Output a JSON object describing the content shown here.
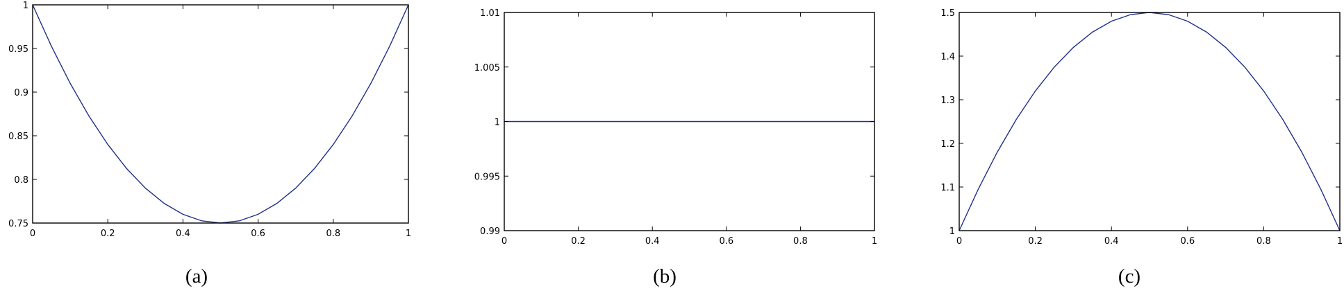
{
  "colors": {
    "series": "#1f2f8a",
    "axes": "#000000",
    "background": "#ffffff"
  },
  "chart_data": [
    {
      "type": "line",
      "caption": "(a)",
      "xlim": [
        0,
        1
      ],
      "ylim": [
        0.75,
        1
      ],
      "xticks": [
        0,
        0.2,
        0.4,
        0.6,
        0.8,
        1
      ],
      "xtick_labels": [
        "0",
        "0.2",
        "0.4",
        "0.6",
        "0.8",
        "1"
      ],
      "yticks": [
        0.75,
        0.8,
        0.85,
        0.9,
        0.95,
        1
      ],
      "ytick_labels": [
        "0.75",
        "0.8",
        "0.85",
        "0.9",
        "0.95",
        "1"
      ],
      "grid": false,
      "series": [
        {
          "x": [
            0,
            0.05,
            0.1,
            0.15,
            0.2,
            0.25,
            0.3,
            0.35,
            0.4,
            0.45,
            0.5,
            0.55,
            0.6,
            0.65,
            0.7,
            0.75,
            0.8,
            0.85,
            0.9,
            0.95,
            1
          ],
          "y": [
            1,
            0.9525,
            0.91,
            0.8725,
            0.84,
            0.8125,
            0.79,
            0.7725,
            0.76,
            0.7525,
            0.75,
            0.7525,
            0.76,
            0.7725,
            0.79,
            0.8125,
            0.84,
            0.8725,
            0.91,
            0.9525,
            1
          ]
        }
      ]
    },
    {
      "type": "line",
      "caption": "(b)",
      "xlim": [
        0,
        1
      ],
      "ylim": [
        0.99,
        1.01
      ],
      "xticks": [
        0,
        0.2,
        0.4,
        0.6,
        0.8,
        1
      ],
      "xtick_labels": [
        "0",
        "0.2",
        "0.4",
        "0.6",
        "0.8",
        "1"
      ],
      "yticks": [
        0.99,
        0.995,
        1,
        1.005,
        1.01
      ],
      "ytick_labels": [
        "0.99",
        "0.995",
        "1",
        "1.005",
        "1.01"
      ],
      "grid": false,
      "series": [
        {
          "x": [
            0,
            0.2,
            0.4,
            0.6,
            0.8,
            1
          ],
          "y": [
            1,
            1,
            1,
            1,
            1,
            1
          ]
        }
      ]
    },
    {
      "type": "line",
      "caption": "(c)",
      "xlim": [
        0,
        1
      ],
      "ylim": [
        1,
        1.5
      ],
      "xticks": [
        0,
        0.2,
        0.4,
        0.6,
        0.8,
        1
      ],
      "xtick_labels": [
        "0",
        "0.2",
        "0.4",
        "0.6",
        "0.8",
        "1"
      ],
      "yticks": [
        1,
        1.1,
        1.2,
        1.3,
        1.4,
        1.5
      ],
      "ytick_labels": [
        "1",
        "1.1",
        "1.2",
        "1.3",
        "1.4",
        "1.5"
      ],
      "grid": false,
      "series": [
        {
          "x": [
            0,
            0.05,
            0.1,
            0.15,
            0.2,
            0.25,
            0.3,
            0.35,
            0.4,
            0.45,
            0.5,
            0.55,
            0.6,
            0.65,
            0.7,
            0.75,
            0.8,
            0.85,
            0.9,
            0.95,
            1
          ],
          "y": [
            1,
            1.095,
            1.18,
            1.255,
            1.32,
            1.375,
            1.42,
            1.455,
            1.48,
            1.495,
            1.5,
            1.495,
            1.48,
            1.455,
            1.42,
            1.375,
            1.32,
            1.255,
            1.18,
            1.095,
            1
          ]
        }
      ]
    }
  ]
}
